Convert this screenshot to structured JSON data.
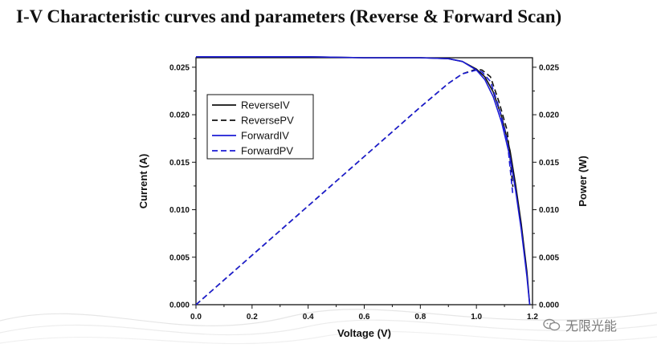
{
  "page": {
    "title": "I-V Characteristic curves and parameters (Reverse & Forward Scan)",
    "watermark": "无限光能"
  },
  "chart_data": {
    "type": "line",
    "title": "",
    "xlabel": "Voltage (V)",
    "ylabel": "Current (A)",
    "y2label": "Power (W)",
    "xlim": [
      0.0,
      1.2
    ],
    "ylim": [
      0.0,
      0.026
    ],
    "y2lim": [
      0.0,
      0.026
    ],
    "x_ticks": [
      "0.0",
      "0.2",
      "0.4",
      "0.6",
      "0.8",
      "1.0",
      "1.2"
    ],
    "y_ticks": [
      "0.000",
      "0.005",
      "0.010",
      "0.015",
      "0.020",
      "0.025"
    ],
    "y2_ticks": [
      "0.000",
      "0.005",
      "0.010",
      "0.015",
      "0.020",
      "0.025"
    ],
    "legend_position": "upper-left",
    "grid": false,
    "series": [
      {
        "name": "ReverseIV",
        "color": "#111111",
        "dash": "solid",
        "x": [
          0.0,
          0.2,
          0.4,
          0.6,
          0.8,
          0.9,
          0.95,
          1.0,
          1.03,
          1.06,
          1.09,
          1.12,
          1.14,
          1.16,
          1.18,
          1.19
        ],
        "y": [
          0.0261,
          0.0261,
          0.0261,
          0.026,
          0.026,
          0.0259,
          0.0256,
          0.0248,
          0.024,
          0.0224,
          0.0198,
          0.0162,
          0.0126,
          0.0085,
          0.0035,
          0.0
        ]
      },
      {
        "name": "ReversePV",
        "color": "#111111",
        "dash": "dashed",
        "x": [
          0.0,
          0.2,
          0.4,
          0.6,
          0.8,
          0.9,
          0.95,
          1.0,
          1.02,
          1.05,
          1.08,
          1.11,
          1.13
        ],
        "y": [
          0.0,
          0.0052,
          0.0104,
          0.0156,
          0.0208,
          0.0233,
          0.0243,
          0.0248,
          0.0247,
          0.024,
          0.0214,
          0.0183,
          0.0124
        ]
      },
      {
        "name": "ForwardIV",
        "color": "#1b1bd6",
        "dash": "solid",
        "x": [
          0.0,
          0.2,
          0.4,
          0.6,
          0.8,
          0.9,
          0.95,
          1.0,
          1.03,
          1.06,
          1.09,
          1.12,
          1.14,
          1.16,
          1.18,
          1.19
        ],
        "y": [
          0.0261,
          0.0261,
          0.0261,
          0.026,
          0.026,
          0.0259,
          0.0256,
          0.0247,
          0.0237,
          0.0219,
          0.0192,
          0.0155,
          0.012,
          0.0079,
          0.003,
          0.0
        ]
      },
      {
        "name": "ForwardPV",
        "color": "#1b1bd6",
        "dash": "dashed",
        "x": [
          0.0,
          0.2,
          0.4,
          0.6,
          0.8,
          0.9,
          0.95,
          1.0,
          1.02,
          1.05,
          1.08,
          1.11,
          1.13
        ],
        "y": [
          0.0,
          0.0052,
          0.0104,
          0.0156,
          0.0208,
          0.0233,
          0.0243,
          0.0247,
          0.0245,
          0.0235,
          0.0208,
          0.0173,
          0.0115
        ]
      }
    ]
  }
}
